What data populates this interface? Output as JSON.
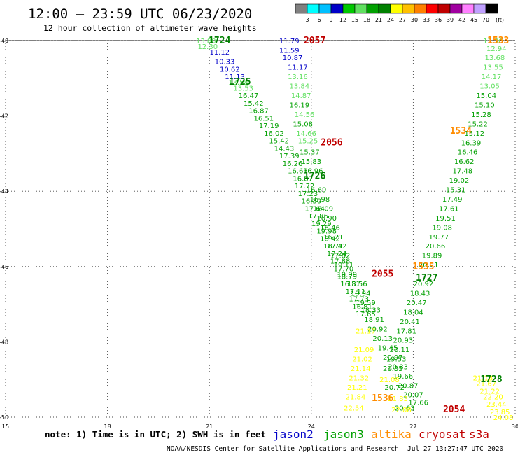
{
  "header": {
    "title": "12:00 – 23:59 UTC 06/23/2020",
    "subtitle": "12 hour collection of altimeter wave heights"
  },
  "colorbar": {
    "unit": "(ft)",
    "ticks": [
      "3",
      "6",
      "9",
      "12",
      "15",
      "18",
      "21",
      "24",
      "27",
      "30",
      "33",
      "36",
      "39",
      "42",
      "45",
      "70"
    ],
    "colors": [
      "#808080",
      "#00ffff",
      "#00c0ff",
      "#0000c8",
      "#00c800",
      "#60e060",
      "#00a000",
      "#008000",
      "#ffff00",
      "#ffc000",
      "#ff8000",
      "#ff0000",
      "#c00000",
      "#a000a0",
      "#ff80ff",
      "#c0a0ff",
      "#000000"
    ]
  },
  "footer": {
    "note": "note: 1) Time is in UTC; 2) SWH is in feet",
    "credit": "NOAA/NESDIS Center for Satellite Applications and Research",
    "timestamp": "Jul 27 13:27:47 UTC 2020",
    "legend": [
      {
        "name": "jason2",
        "color": "#0000c8"
      },
      {
        "name": "jason3",
        "color": "#00a000"
      },
      {
        "name": "altika",
        "color": "#ff8c00"
      },
      {
        "name": "cryosat",
        "color": "#c00000"
      },
      {
        "name": "s3a",
        "color": "#c00000"
      }
    ]
  },
  "chart_data": {
    "type": "scatter",
    "xlim": [
      15,
      30
    ],
    "ylim": [
      -50,
      -40
    ],
    "x_ticks": [
      15,
      18,
      21,
      24,
      27,
      30
    ],
    "y_ticks": [
      -40,
      -42,
      -44,
      -46,
      -48,
      -50
    ],
    "grid": true,
    "time_labels": [
      {
        "text": "1724",
        "x": 21.3,
        "y": -40.0,
        "color": "#008000"
      },
      {
        "text": "1725",
        "x": 21.9,
        "y": -41.1,
        "color": "#008000"
      },
      {
        "text": "1726",
        "x": 24.1,
        "y": -43.6,
        "color": "#008000"
      },
      {
        "text": "1727",
        "x": 27.4,
        "y": -46.3,
        "color": "#008000"
      },
      {
        "text": "1728",
        "x": 29.3,
        "y": -49.0,
        "color": "#008000"
      },
      {
        "text": "2057",
        "x": 24.1,
        "y": -40.0,
        "color": "#c00000"
      },
      {
        "text": "2056",
        "x": 24.6,
        "y": -42.7,
        "color": "#c00000"
      },
      {
        "text": "2055",
        "x": 26.1,
        "y": -46.2,
        "color": "#c00000"
      },
      {
        "text": "2054",
        "x": 28.2,
        "y": -49.8,
        "color": "#c00000"
      },
      {
        "text": "1533",
        "x": 29.5,
        "y": -40.0,
        "color": "#ff8c00"
      },
      {
        "text": "1534",
        "x": 28.4,
        "y": -42.4,
        "color": "#ff8c00"
      },
      {
        "text": "1535",
        "x": 27.3,
        "y": -46.0,
        "color": "#ff8c00"
      },
      {
        "text": "1536",
        "x": 26.1,
        "y": -49.5,
        "color": "#ff8c00"
      }
    ],
    "series": [
      {
        "track": "jason2",
        "color": "#0000c8",
        "points": [
          [
            "11.12",
            21.3,
            -40.3
          ],
          [
            "10.33",
            21.45,
            -40.55
          ],
          [
            "10.62",
            21.6,
            -40.75
          ],
          [
            "11.13",
            21.75,
            -40.95
          ],
          [
            "11.79",
            23.35,
            -40.0
          ],
          [
            "11.59",
            23.35,
            -40.25
          ],
          [
            "10.87",
            23.45,
            -40.45
          ],
          [
            "11.17",
            23.6,
            -40.7
          ]
        ]
      },
      {
        "track": "jason3-A",
        "color": "#60e060",
        "points": [
          [
            "13.80",
            20.9,
            -40.0
          ],
          [
            "12.30",
            20.95,
            -40.15
          ],
          [
            "13.58",
            21.85,
            -41.1
          ],
          [
            "13.53",
            22.0,
            -41.25
          ]
        ]
      },
      {
        "track": "jason3-A",
        "color": "#00a000",
        "points": [
          [
            "16.47",
            22.15,
            -41.45
          ],
          [
            "15.42",
            22.3,
            -41.65
          ],
          [
            "16.87",
            22.45,
            -41.85
          ],
          [
            "16.51",
            22.6,
            -42.05
          ],
          [
            "17.19",
            22.75,
            -42.25
          ],
          [
            "16.02",
            22.9,
            -42.45
          ],
          [
            "15.42",
            23.05,
            -42.65
          ],
          [
            "14.43",
            23.2,
            -42.85
          ],
          [
            "17.39",
            23.35,
            -43.05
          ],
          [
            "16.26",
            23.45,
            -43.25
          ],
          [
            "16.63",
            23.6,
            -43.45
          ],
          [
            "16.87",
            23.75,
            -43.65
          ],
          [
            "17.72",
            23.8,
            -43.85
          ],
          [
            "17.23",
            23.9,
            -44.05
          ],
          [
            "16.30",
            24.0,
            -44.25
          ],
          [
            "17.64",
            24.1,
            -44.45
          ],
          [
            "17.86",
            24.2,
            -44.65
          ],
          [
            "19.29",
            24.3,
            -44.85
          ],
          [
            "19.98",
            24.45,
            -45.05
          ],
          [
            "18.42",
            24.55,
            -45.25
          ],
          [
            "18.71",
            24.65,
            -45.45
          ],
          [
            "17.24",
            24.75,
            -45.65
          ],
          [
            "17.88",
            24.85,
            -45.85
          ],
          [
            "17.70",
            24.95,
            -46.05
          ],
          [
            "18.79",
            25.05,
            -46.25
          ],
          [
            "16.51",
            25.15,
            -46.45
          ],
          [
            "17.11",
            25.3,
            -46.65
          ],
          [
            "17.73",
            25.4,
            -46.85
          ],
          [
            "16.81",
            25.5,
            -47.05
          ],
          [
            "17.65",
            25.6,
            -47.25
          ]
        ]
      },
      {
        "track": "cryosat",
        "color": "#60e060",
        "points": [
          [
            "13.16",
            23.6,
            -40.95
          ],
          [
            "13.84",
            23.65,
            -41.2
          ],
          [
            "14.87",
            23.7,
            -41.45
          ],
          [
            "14.56",
            23.8,
            -41.95
          ],
          [
            "14.66",
            23.85,
            -42.45
          ],
          [
            "15.25",
            23.9,
            -42.65
          ]
        ]
      },
      {
        "track": "cryosat",
        "color": "#00a000",
        "points": [
          [
            "16.19",
            23.65,
            -41.7
          ],
          [
            "15.08",
            23.75,
            -42.2
          ],
          [
            "15.37",
            23.95,
            -42.95
          ],
          [
            "15.83",
            24.0,
            -43.2
          ],
          [
            "16.96",
            24.05,
            -43.45
          ],
          [
            "16.69",
            24.15,
            -43.95
          ],
          [
            "16.98",
            24.25,
            -44.2
          ],
          [
            "16.09",
            24.35,
            -44.45
          ],
          [
            "16.90",
            24.45,
            -44.7
          ],
          [
            "16.46",
            24.55,
            -44.95
          ],
          [
            "16.21",
            24.65,
            -45.2
          ],
          [
            "17.42",
            24.75,
            -45.45
          ],
          [
            "17.82",
            24.85,
            -45.7
          ],
          [
            "19.11",
            24.95,
            -45.95
          ],
          [
            "19.99",
            25.05,
            -46.2
          ],
          [
            "18.56",
            25.35,
            -46.45
          ],
          [
            "19.94",
            25.45,
            -46.7
          ],
          [
            "19.59",
            25.6,
            -46.95
          ],
          [
            "18.33",
            25.75,
            -47.15
          ],
          [
            "18.91",
            25.85,
            -47.4
          ],
          [
            "20.92",
            25.95,
            -47.65
          ],
          [
            "20.13",
            26.1,
            -47.9
          ],
          [
            "19.45",
            26.25,
            -48.15
          ],
          [
            "20.97",
            26.4,
            -48.4
          ],
          [
            "20.83",
            26.55,
            -48.65
          ],
          [
            "19.66",
            26.7,
            -48.9
          ],
          [
            "20.87",
            26.85,
            -49.15
          ],
          [
            "20.07",
            27.0,
            -49.4
          ],
          [
            "17.66",
            27.15,
            -49.6
          ]
        ]
      },
      {
        "track": "altika",
        "color": "#60e060",
        "points": [
          [
            "13.30",
            29.35,
            -40.0
          ],
          [
            "12.94",
            29.45,
            -40.2
          ],
          [
            "13.68",
            29.4,
            -40.45
          ],
          [
            "13.55",
            29.35,
            -40.7
          ],
          [
            "14.17",
            29.3,
            -40.95
          ],
          [
            "13.05",
            29.25,
            -41.2
          ]
        ]
      },
      {
        "track": "altika",
        "color": "#00a000",
        "points": [
          [
            "15.04",
            29.15,
            -41.45
          ],
          [
            "15.10",
            29.1,
            -41.7
          ],
          [
            "15.28",
            29.0,
            -41.95
          ],
          [
            "15.22",
            28.9,
            -42.2
          ],
          [
            "15.12",
            28.8,
            -42.45
          ],
          [
            "16.39",
            28.7,
            -42.7
          ],
          [
            "16.46",
            28.6,
            -42.95
          ],
          [
            "16.62",
            28.5,
            -43.2
          ],
          [
            "17.48",
            28.45,
            -43.45
          ],
          [
            "19.02",
            28.35,
            -43.7
          ],
          [
            "15.31",
            28.25,
            -43.95
          ],
          [
            "17.49",
            28.15,
            -44.2
          ],
          [
            "17.61",
            28.05,
            -44.45
          ],
          [
            "19.51",
            27.95,
            -44.7
          ],
          [
            "19.08",
            27.85,
            -44.95
          ],
          [
            "19.77",
            27.75,
            -45.2
          ],
          [
            "20.66",
            27.65,
            -45.45
          ],
          [
            "19.89",
            27.55,
            -45.7
          ],
          [
            "20.21",
            27.45,
            -45.95
          ],
          [
            "20.92",
            27.3,
            -46.45
          ],
          [
            "18.43",
            27.2,
            -46.7
          ],
          [
            "20.47",
            27.1,
            -46.95
          ],
          [
            "18.04",
            27.0,
            -47.2
          ],
          [
            "20.41",
            26.9,
            -47.45
          ],
          [
            "17.81",
            26.8,
            -47.7
          ],
          [
            "20.93",
            26.7,
            -47.95
          ],
          [
            "20.11",
            26.6,
            -48.2
          ],
          [
            "19.53",
            26.5,
            -48.45
          ],
          [
            "20.35",
            26.4,
            -48.7
          ],
          [
            "20.72",
            26.45,
            -49.2
          ],
          [
            "20.63",
            26.75,
            -49.75
          ]
        ]
      },
      {
        "track": "altika",
        "color": "#ffff00",
        "points": [
          [
            "21.17",
            25.6,
            -47.7
          ],
          [
            "21.09",
            25.55,
            -48.2
          ],
          [
            "21.02",
            25.5,
            -48.45
          ],
          [
            "21.14",
            25.45,
            -48.7
          ],
          [
            "21.32",
            25.4,
            -48.95
          ],
          [
            "21.21",
            25.35,
            -49.2
          ],
          [
            "21.84",
            25.3,
            -49.45
          ],
          [
            "22.54",
            25.25,
            -49.75
          ],
          [
            "21.08",
            26.3,
            -49.0
          ],
          [
            "21.83",
            26.55,
            -49.5
          ],
          [
            "22.08",
            26.65,
            -49.8
          ],
          [
            "21.18",
            29.05,
            -48.95
          ],
          [
            "21.67",
            29.15,
            -49.1
          ],
          [
            "21.22",
            29.25,
            -49.3
          ],
          [
            "22.20",
            29.35,
            -49.45
          ],
          [
            "23.44",
            29.45,
            -49.65
          ],
          [
            "23.85",
            29.55,
            -49.85
          ],
          [
            "24.08",
            29.65,
            -50.0
          ]
        ]
      }
    ]
  }
}
